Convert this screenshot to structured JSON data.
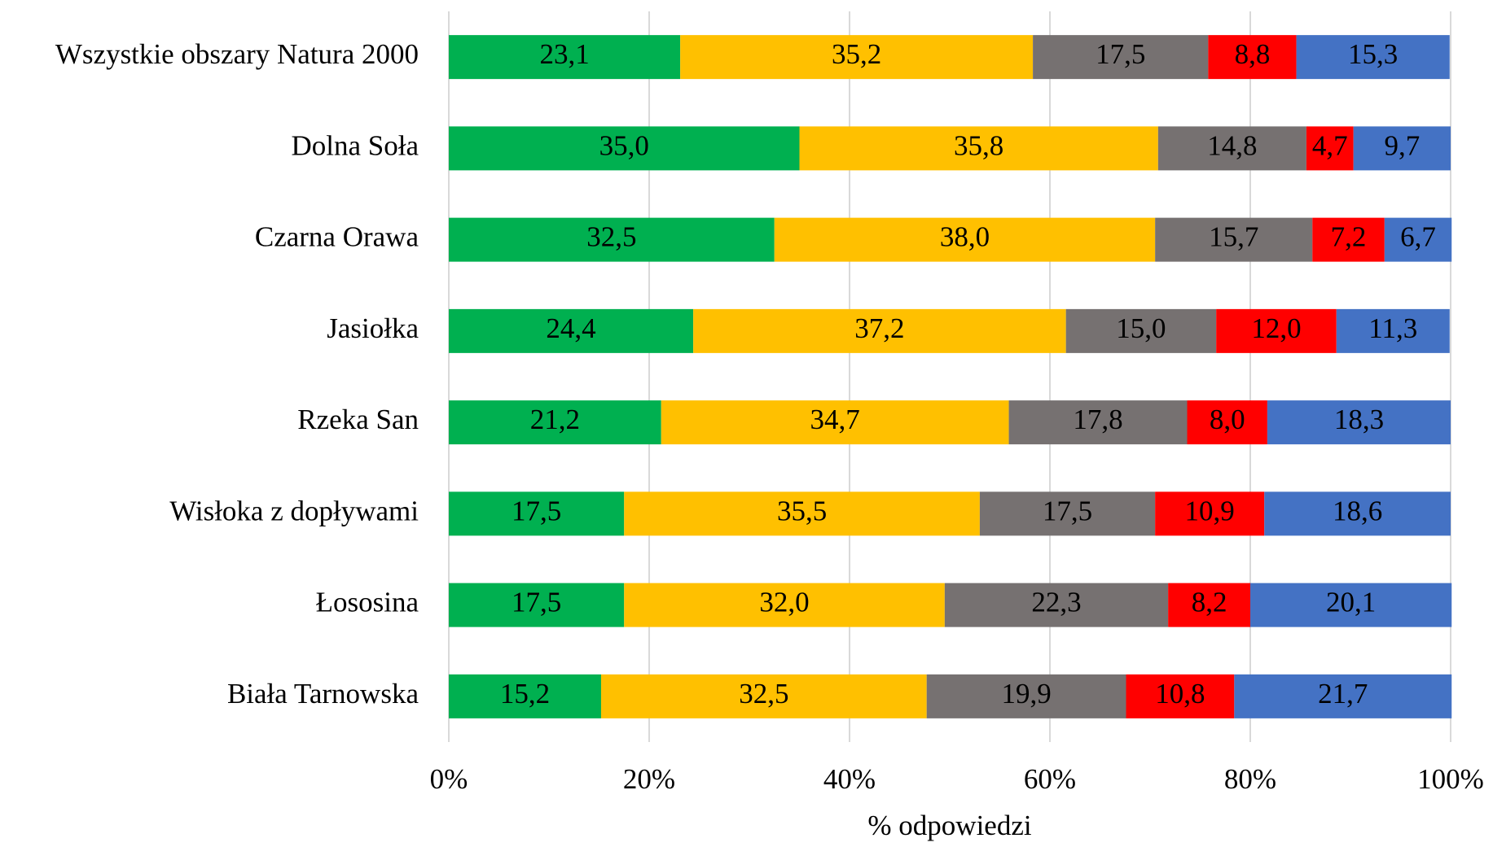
{
  "chart_data": {
    "type": "stacked_barh",
    "categories": [
      "Wszystkie obszary Natura 2000",
      "Dolna Soła",
      "Czarna Orawa",
      "Jasiołka",
      "Rzeka San",
      "Wisłoka z dopływami",
      "Łososina",
      "Biała Tarnowska"
    ],
    "series": [
      {
        "color": "#00b050",
        "values": [
          23.1,
          35.0,
          32.5,
          24.4,
          21.2,
          17.5,
          17.5,
          15.2
        ],
        "value_labels": [
          "23,1",
          "35,0",
          "32,5",
          "24,4",
          "21,2",
          "17,5",
          "17,5",
          "15,2"
        ]
      },
      {
        "color": "#ffc000",
        "values": [
          35.2,
          35.8,
          38.0,
          37.2,
          34.7,
          35.5,
          32.0,
          32.5
        ],
        "value_labels": [
          "35,2",
          "35,8",
          "38,0",
          "37,2",
          "34,7",
          "35,5",
          "32,0",
          "32,5"
        ]
      },
      {
        "color": "#767171",
        "values": [
          17.5,
          14.8,
          15.7,
          15.0,
          17.8,
          17.5,
          22.3,
          19.9
        ],
        "value_labels": [
          "17,5",
          "14,8",
          "15,7",
          "15,0",
          "17,8",
          "17,5",
          "22,3",
          "19,9"
        ]
      },
      {
        "color": "#ff0000",
        "values": [
          8.8,
          4.7,
          7.2,
          12.0,
          8.0,
          10.9,
          8.2,
          10.8
        ],
        "value_labels": [
          "8,8",
          "4,7",
          "7,2",
          "12,0",
          "8,0",
          "10,9",
          "8,2",
          "10,8"
        ]
      },
      {
        "color": "#4472c4",
        "values": [
          15.3,
          9.7,
          6.7,
          11.3,
          18.3,
          18.6,
          20.1,
          21.7
        ],
        "value_labels": [
          "15,3",
          "9,7",
          "6,7",
          "11,3",
          "18,3",
          "18,6",
          "20,1",
          "21,7"
        ]
      }
    ],
    "x_label": "% odpowiedzi",
    "xlim": [
      0,
      100
    ],
    "xticks": [
      {
        "value": 0,
        "label": "0%"
      },
      {
        "value": 20,
        "label": "20%"
      },
      {
        "value": 40,
        "label": "40%"
      },
      {
        "value": 60,
        "label": "60%"
      },
      {
        "value": 80,
        "label": "80%"
      },
      {
        "value": 100,
        "label": "100%"
      }
    ],
    "grid": true
  }
}
